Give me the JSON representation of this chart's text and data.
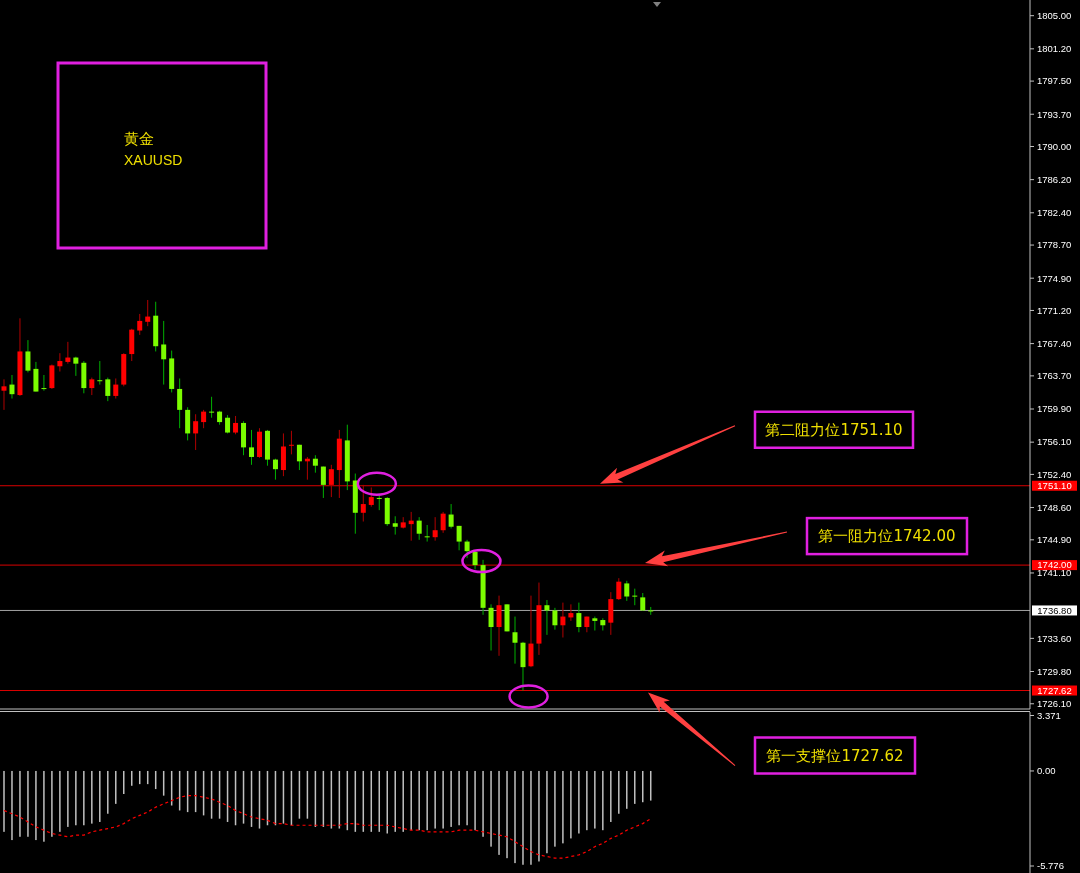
{
  "chart_data": [
    {
      "type": "candlestick",
      "title": "黄金",
      "subtitle": "XAUUSD",
      "categories": [
        null,
        null,
        null,
        null,
        null,
        null,
        null,
        null,
        null,
        null,
        null,
        null,
        null,
        null,
        null,
        null,
        null,
        null,
        null,
        null,
        null,
        null,
        null,
        null,
        null,
        null,
        null,
        null,
        null,
        null,
        null,
        null,
        null,
        null,
        null,
        null,
        null,
        null,
        null,
        null,
        null,
        null,
        null,
        null,
        null,
        null,
        null,
        null,
        null,
        null,
        null,
        null,
        null,
        null,
        null,
        null,
        null,
        null,
        null,
        null,
        null,
        null,
        null,
        null,
        null,
        null,
        null,
        null,
        null,
        null,
        null,
        null,
        null,
        null,
        null,
        null,
        null,
        null,
        null,
        null,
        null,
        null,
        null,
        null,
        null,
        null,
        null,
        null,
        null,
        null,
        null,
        null,
        null,
        null,
        null,
        null,
        null,
        null,
        null,
        null,
        null,
        null,
        null,
        null,
        null,
        null,
        null,
        null,
        null,
        null,
        null,
        null,
        null,
        null,
        null,
        null,
        null,
        null,
        null,
        null,
        null,
        null,
        null,
        null,
        null,
        null,
        null,
        null,
        null
      ],
      "ohlc": [
        [
          1762.5,
          1763.3,
          1759.8,
          1762.0
        ],
        [
          1761.6,
          1763.8,
          1761.1,
          1762.7
        ],
        [
          1766.5,
          1770.3,
          1761.4,
          1761.5
        ],
        [
          1764.3,
          1767.8,
          1764.1,
          1766.5
        ],
        [
          1761.9,
          1765.3,
          1761.9,
          1764.5
        ],
        [
          1762.3,
          1763.8,
          1762.0,
          1762.3
        ],
        [
          1764.9,
          1765.0,
          1762.2,
          1762.3
        ],
        [
          1765.4,
          1766.3,
          1764.2,
          1764.8
        ],
        [
          1765.8,
          1767.6,
          1765.1,
          1765.3
        ],
        [
          1765.1,
          1765.9,
          1763.7,
          1765.8
        ],
        [
          1762.3,
          1765.4,
          1761.7,
          1765.2
        ],
        [
          1763.3,
          1763.5,
          1761.5,
          1762.3
        ],
        [
          1763.2,
          1765.4,
          1762.7,
          1763.2
        ],
        [
          1761.4,
          1763.5,
          1760.8,
          1763.3
        ],
        [
          1762.7,
          1763.4,
          1761.1,
          1761.4
        ],
        [
          1766.2,
          1766.3,
          1762.5,
          1762.7
        ],
        [
          1769.0,
          1769.1,
          1765.4,
          1766.2
        ],
        [
          1770.0,
          1770.8,
          1768.4,
          1768.9
        ],
        [
          1770.5,
          1772.4,
          1769.4,
          1769.9
        ],
        [
          1767.1,
          1772.2,
          1766.5,
          1770.6
        ],
        [
          1765.6,
          1770.0,
          1762.7,
          1767.3
        ],
        [
          1762.2,
          1766.6,
          1761.8,
          1765.7
        ],
        [
          1759.8,
          1763.4,
          1757.7,
          1762.2
        ],
        [
          1757.1,
          1760.1,
          1756.3,
          1759.8
        ],
        [
          1758.5,
          1759.3,
          1755.2,
          1757.1
        ],
        [
          1759.6,
          1759.8,
          1757.7,
          1758.4
        ],
        [
          1759.6,
          1761.3,
          1758.9,
          1759.6
        ],
        [
          1758.4,
          1759.7,
          1758.1,
          1759.6
        ],
        [
          1757.2,
          1759.2,
          1757.1,
          1758.9
        ],
        [
          1758.3,
          1759.1,
          1757.0,
          1757.2
        ],
        [
          1755.5,
          1758.5,
          1754.6,
          1758.3
        ],
        [
          1754.4,
          1757.5,
          1753.5,
          1755.5
        ],
        [
          1757.3,
          1757.7,
          1754.3,
          1754.4
        ],
        [
          1754.1,
          1757.5,
          1753.4,
          1757.4
        ],
        [
          1753.0,
          1754.2,
          1751.8,
          1754.1
        ],
        [
          1755.6,
          1757.1,
          1752.2,
          1752.9
        ],
        [
          1755.8,
          1757.4,
          1754.7,
          1755.7
        ],
        [
          1753.9,
          1755.8,
          1752.9,
          1755.8
        ],
        [
          1754.2,
          1754.4,
          1751.8,
          1753.9
        ],
        [
          1753.4,
          1754.6,
          1752.6,
          1754.2
        ],
        [
          1751.2,
          1753.3,
          1749.7,
          1753.3
        ],
        [
          1753.0,
          1753.5,
          1749.8,
          1751.2
        ],
        [
          1756.5,
          1757.5,
          1749.7,
          1752.9
        ],
        [
          1751.6,
          1758.1,
          1750.6,
          1756.3
        ],
        [
          1748.0,
          1752.5,
          1745.6,
          1751.7
        ],
        [
          1749.0,
          1751.2,
          1747.0,
          1748.0
        ],
        [
          1749.8,
          1750.9,
          1748.7,
          1748.9
        ],
        [
          1749.7,
          1750.1,
          1748.3,
          1749.7
        ],
        [
          1746.7,
          1749.8,
          1746.5,
          1749.7
        ],
        [
          1746.4,
          1747.6,
          1745.5,
          1746.8
        ],
        [
          1746.9,
          1747.5,
          1746.2,
          1746.3
        ],
        [
          1747.1,
          1748.1,
          1744.8,
          1746.7
        ],
        [
          1745.6,
          1747.5,
          1744.9,
          1747.1
        ],
        [
          1745.3,
          1746.6,
          1744.7,
          1745.3
        ],
        [
          1746.0,
          1747.5,
          1744.8,
          1745.2
        ],
        [
          1747.9,
          1748.1,
          1745.7,
          1746.0
        ],
        [
          1746.4,
          1749.0,
          1746.2,
          1747.8
        ],
        [
          1744.7,
          1746.5,
          1743.7,
          1746.5
        ],
        [
          1743.6,
          1744.9,
          1742.8,
          1744.7
        ],
        [
          1742.0,
          1743.6,
          1741.5,
          1743.5
        ],
        [
          1737.1,
          1742.6,
          1736.3,
          1742.0
        ],
        [
          1734.9,
          1737.5,
          1732.2,
          1737.1
        ],
        [
          1737.4,
          1738.5,
          1731.6,
          1734.9
        ],
        [
          1734.4,
          1737.5,
          1734.4,
          1737.5
        ],
        [
          1733.1,
          1736.1,
          1730.7,
          1734.3
        ],
        [
          1730.3,
          1733.2,
          1727.6,
          1733.1
        ],
        [
          1733.0,
          1738.5,
          1730.3,
          1730.4
        ],
        [
          1737.4,
          1740.0,
          1731.7,
          1733.0
        ],
        [
          1736.8,
          1738.0,
          1734.0,
          1737.4
        ],
        [
          1735.1,
          1737.1,
          1734.6,
          1736.8
        ],
        [
          1736.1,
          1737.7,
          1733.7,
          1735.1
        ],
        [
          1736.5,
          1737.5,
          1735.6,
          1736.0
        ],
        [
          1734.9,
          1737.7,
          1734.3,
          1736.5
        ],
        [
          1736.1,
          1736.1,
          1734.3,
          1734.9
        ],
        [
          1735.6,
          1736.1,
          1734.5,
          1735.9
        ],
        [
          1735.1,
          1735.9,
          1734.5,
          1735.7
        ],
        [
          1738.1,
          1738.9,
          1734.0,
          1735.4
        ],
        [
          1740.1,
          1740.5,
          1738.0,
          1738.1
        ],
        [
          1738.4,
          1740.2,
          1737.9,
          1739.9
        ],
        [
          1738.5,
          1739.3,
          1737.4,
          1738.5
        ],
        [
          1736.8,
          1738.8,
          1736.8,
          1738.3
        ],
        [
          1736.8,
          1737.2,
          1736.3,
          1736.8
        ],
        null,
        null,
        null,
        null,
        null,
        null,
        null,
        null,
        null,
        null,
        null,
        null,
        null,
        null,
        null,
        null,
        null,
        null,
        null,
        null,
        null,
        null,
        null,
        null,
        null,
        null,
        null,
        null,
        null,
        null,
        null,
        null,
        null,
        null,
        null,
        null,
        null,
        null,
        null,
        null,
        null,
        null,
        null,
        null,
        null,
        null,
        null
      ],
      "ylim": [
        1725.5,
        1806.8
      ],
      "yticks": [
        {
          "value": 1805,
          "label": "1805.00"
        },
        {
          "value": 1801.2,
          "label": "1801.20"
        },
        {
          "value": 1797.5,
          "label": "1797.50"
        },
        {
          "value": 1793.7,
          "label": "1793.70"
        },
        {
          "value": 1790,
          "label": "1790.00"
        },
        {
          "value": 1786.2,
          "label": "1786.20"
        },
        {
          "value": 1782.4,
          "label": "1782.40"
        },
        {
          "value": 1778.7,
          "label": "1778.70"
        },
        {
          "value": 1774.9,
          "label": "1774.90"
        },
        {
          "value": 1771.2,
          "label": "1771.20"
        },
        {
          "value": 1767.4,
          "label": "1767.40"
        },
        {
          "value": 1763.7,
          "label": "1763.70"
        },
        {
          "value": 1759.9,
          "label": "1759.90"
        },
        {
          "value": 1756.1,
          "label": "1756.10"
        },
        {
          "value": 1752.4,
          "label": "1752.40"
        },
        {
          "value": 1748.6,
          "label": "1748.60"
        },
        {
          "value": 1744.9,
          "label": "1744.90"
        },
        {
          "value": 1741.1,
          "label": "1741.10"
        },
        {
          "value": 1733.6,
          "label": "1733.60"
        },
        {
          "value": 1729.8,
          "label": "1729.80"
        },
        {
          "value": 1726.1,
          "label": "1726.10"
        }
      ],
      "ref_lines": [
        {
          "axis": "y",
          "value": 1751.1,
          "label": "1751.10",
          "color": "#ff0000"
        },
        {
          "axis": "y",
          "value": 1742,
          "label": "1742.00",
          "color": "#ff0000"
        },
        {
          "axis": "y",
          "value": 1727.62,
          "label": "1727.62",
          "color": "#ff0000"
        },
        {
          "axis": "y",
          "value": 1736.8,
          "label": "1736.80",
          "color": "#c0c0c0"
        }
      ],
      "annotations": [
        "第二阻力位1751.10",
        "第一阻力位1742.00",
        "第一支撑位1727.62"
      ]
    },
    {
      "type": "bar",
      "categories": [
        null,
        null,
        null,
        null,
        null,
        null,
        null,
        null,
        null,
        null,
        null,
        null,
        null,
        null,
        null,
        null,
        null,
        null,
        null,
        null,
        null,
        null,
        null,
        null,
        null,
        null,
        null,
        null,
        null,
        null,
        null,
        null,
        null,
        null,
        null,
        null,
        null,
        null,
        null,
        null,
        null,
        null,
        null,
        null,
        null,
        null,
        null,
        null,
        null,
        null,
        null,
        null,
        null,
        null,
        null,
        null,
        null,
        null,
        null,
        null,
        null,
        null,
        null,
        null,
        null,
        null,
        null,
        null,
        null,
        null,
        null,
        null,
        null,
        null,
        null,
        null,
        null,
        null,
        null,
        null,
        null,
        null,
        null,
        null,
        null,
        null,
        null,
        null,
        null,
        null,
        null,
        null,
        null,
        null,
        null,
        null,
        null,
        null,
        null,
        null,
        null,
        null,
        null,
        null,
        null,
        null,
        null,
        null,
        null,
        null,
        null,
        null,
        null,
        null,
        null,
        null,
        null,
        null,
        null,
        null,
        null,
        null,
        null,
        null,
        null,
        null,
        null,
        null,
        null
      ],
      "series": [
        {
          "color": "#c0c0c0",
          "values": [
            -3.7,
            -4.2,
            -4.0,
            -4.0,
            -4.2,
            -4.3,
            -4.0,
            -3.7,
            -3.4,
            -3.3,
            -3.3,
            -3.2,
            -3.1,
            -2.6,
            -2.0,
            -1.4,
            -0.9,
            -0.8,
            -0.8,
            -1.1,
            -1.5,
            -2.1,
            -2.4,
            -2.5,
            -2.5,
            -2.7,
            -2.9,
            -2.9,
            -3.1,
            -3.3,
            -3.2,
            -3.4,
            -3.5,
            -3.3,
            -3.3,
            -3.2,
            -3.3,
            -2.9,
            -2.9,
            -3.4,
            -3.4,
            -3.5,
            -3.5,
            -3.6,
            -3.7,
            -3.7,
            -3.7,
            -3.7,
            -3.8,
            -3.7,
            -3.7,
            -3.6,
            -3.6,
            -3.6,
            -3.5,
            -3.5,
            -3.4,
            -3.3,
            -3.3,
            -3.6,
            -4.0,
            -4.6,
            -5.1,
            -5.3,
            -5.6,
            -5.7,
            -5.7,
            -5.5,
            -5.0,
            -4.6,
            -4.4,
            -4.1,
            -3.8,
            -3.6,
            -3.5,
            -3.6,
            -3.1,
            -2.6,
            -2.3,
            -2.0,
            -1.9,
            -1.8,
            null,
            null,
            null,
            null,
            null,
            null,
            null,
            null,
            null,
            null,
            null,
            null,
            null,
            null,
            null,
            null,
            null,
            null,
            null,
            null,
            null,
            null,
            null,
            null,
            null,
            null,
            null,
            null,
            null,
            null,
            null,
            null,
            null,
            null,
            null,
            null,
            null,
            null,
            null,
            null,
            null,
            null,
            null,
            null,
            null,
            null,
            null
          ]
        },
        {
          "type": "line",
          "color": "#ff0000",
          "line_style": "dashed",
          "values": [
            -2.4,
            -2.6,
            -2.8,
            -3.1,
            -3.4,
            -3.6,
            -3.8,
            -3.9,
            -4.0,
            -3.9,
            -3.9,
            -3.7,
            -3.6,
            -3.5,
            -3.4,
            -3.2,
            -2.9,
            -2.7,
            -2.5,
            -2.2,
            -2.0,
            -1.8,
            -1.6,
            -1.5,
            -1.5,
            -1.6,
            -1.7,
            -1.9,
            -2.1,
            -2.4,
            -2.6,
            -2.8,
            -2.9,
            -3.0,
            -3.2,
            -3.2,
            -3.3,
            -3.3,
            -3.3,
            -3.3,
            -3.3,
            -3.3,
            -3.3,
            -3.2,
            -3.2,
            -3.3,
            -3.3,
            -3.3,
            -3.3,
            -3.4,
            -3.5,
            -3.6,
            -3.6,
            -3.7,
            -3.7,
            -3.7,
            -3.7,
            -3.6,
            -3.6,
            -3.6,
            -3.7,
            -3.8,
            -3.9,
            -4.0,
            -4.3,
            -4.6,
            -4.9,
            -5.1,
            -5.2,
            -5.3,
            -5.3,
            -5.2,
            -5.1,
            -4.9,
            -4.6,
            -4.4,
            -4.1,
            -3.9,
            -3.6,
            -3.4,
            -3.2,
            -2.9,
            null,
            null,
            null,
            null,
            null,
            null,
            null,
            null,
            null,
            null,
            null,
            null,
            null,
            null,
            null,
            null,
            null,
            null,
            null,
            null,
            null,
            null,
            null,
            null,
            null,
            null,
            null,
            null,
            null,
            null,
            null,
            null,
            null,
            null,
            null,
            null,
            null,
            null,
            null,
            null,
            null,
            null,
            null,
            null,
            null,
            null,
            null
          ]
        }
      ],
      "ylim": [
        -5.776,
        3.371
      ],
      "yticks": [
        3.371,
        {
          "value": 0,
          "label": "0.00"
        },
        -5.776
      ]
    }
  ]
}
